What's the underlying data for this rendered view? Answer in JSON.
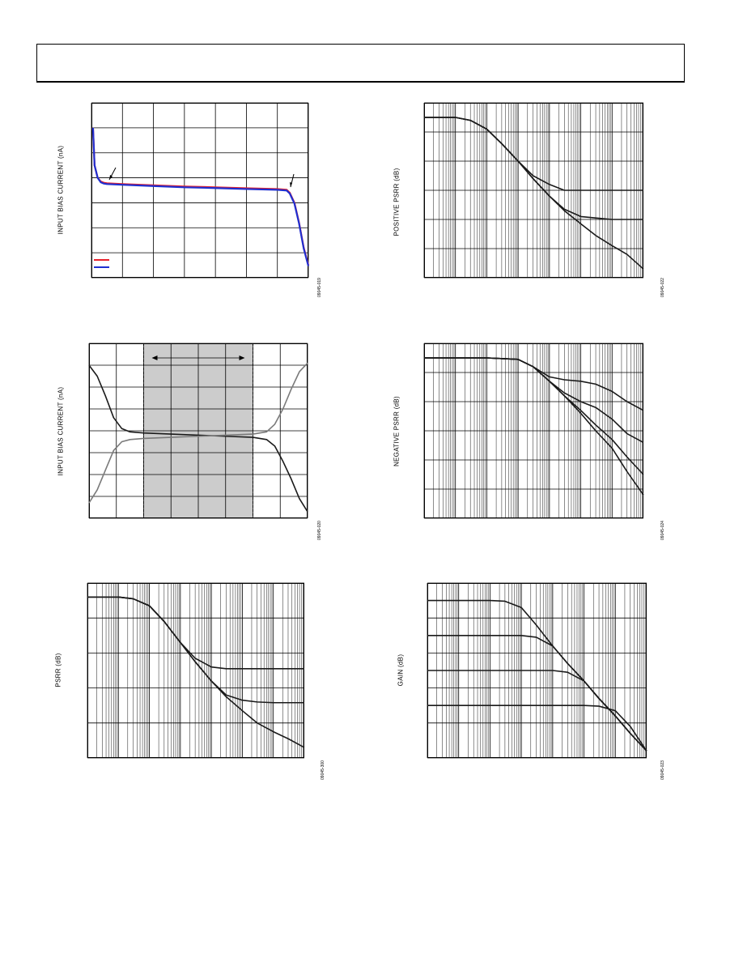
{
  "chart_data": [
    {
      "id": "c1",
      "type": "line",
      "ylabel": "INPUT BIAS CURRENT (nA)",
      "figure_id": "09045-019",
      "xlim": [
        0,
        7
      ],
      "ylim": [
        0,
        7
      ],
      "grid": true,
      "series_colors": [
        "#e8202a",
        "#1f2fd0"
      ],
      "series": [
        {
          "values_x": [
            0.05,
            0.1,
            0.2,
            0.3,
            0.4,
            0.5,
            1,
            2,
            3,
            4,
            5,
            6,
            6.3,
            6.4,
            6.55,
            6.7,
            6.85,
            7.0
          ],
          "values_y": [
            6.0,
            4.5,
            4.0,
            3.85,
            3.8,
            3.78,
            3.75,
            3.7,
            3.65,
            3.62,
            3.58,
            3.55,
            3.52,
            3.4,
            3.0,
            2.2,
            1.2,
            0.5
          ]
        },
        {
          "values_x": [
            0.05,
            0.1,
            0.2,
            0.3,
            0.4,
            0.5,
            1,
            2,
            3,
            4,
            5,
            6,
            6.3,
            6.4,
            6.55,
            6.7,
            6.85,
            7.0
          ],
          "values_y": [
            6.0,
            4.5,
            4.0,
            3.82,
            3.77,
            3.75,
            3.72,
            3.67,
            3.62,
            3.59,
            3.55,
            3.52,
            3.49,
            3.37,
            2.97,
            2.17,
            1.17,
            0.47
          ]
        }
      ]
    },
    {
      "id": "c2",
      "type": "line",
      "ylabel": "INPUT BIAS CURRENT (nA)",
      "figure_id": "09045-020",
      "xlim": [
        0,
        8
      ],
      "ylim": [
        0,
        8
      ],
      "grid": true,
      "shaded_range": [
        2,
        6
      ],
      "series_colors": [
        "#1a1a1a",
        "#7a7a7a"
      ],
      "series": [
        {
          "values_x": [
            0,
            0.3,
            0.6,
            0.9,
            1.2,
            1.5,
            2,
            3,
            4,
            5,
            6,
            6.5,
            6.8,
            7.1,
            7.4,
            7.7,
            8
          ],
          "values_y": [
            7.0,
            6.5,
            5.6,
            4.6,
            4.1,
            3.95,
            3.9,
            3.85,
            3.8,
            3.75,
            3.7,
            3.6,
            3.3,
            2.6,
            1.8,
            0.9,
            0.3
          ]
        },
        {
          "values_x": [
            0,
            0.3,
            0.6,
            0.9,
            1.2,
            1.5,
            2,
            3,
            4,
            5,
            6,
            6.5,
            6.8,
            7.1,
            7.4,
            7.7,
            8
          ],
          "values_y": [
            0.7,
            1.3,
            2.2,
            3.1,
            3.5,
            3.6,
            3.65,
            3.7,
            3.75,
            3.8,
            3.85,
            3.95,
            4.3,
            5.0,
            5.9,
            6.7,
            7.1
          ]
        }
      ]
    },
    {
      "id": "c3",
      "type": "line",
      "ylabel": "PSRR (dB)",
      "figure_id": "09045-300",
      "xlog": true,
      "xlim": [
        10,
        100000000
      ],
      "ylim": [
        0,
        5
      ],
      "grid": true,
      "series_colors": [
        "#1a1a1a",
        "#1a1a1a",
        "#1a1a1a"
      ],
      "series": [
        {
          "values_x": [
            10,
            100,
            300,
            1000,
            3000,
            10000,
            30000,
            100000,
            300000,
            1000000,
            100000000
          ],
          "values_y": [
            4.6,
            4.6,
            4.55,
            4.35,
            3.9,
            3.3,
            2.85,
            2.6,
            2.55,
            2.55,
            2.55
          ]
        },
        {
          "values_x": [
            10,
            100,
            300,
            1000,
            3000,
            10000,
            30000,
            100000,
            300000,
            1000000,
            3000000,
            10000000,
            100000000
          ],
          "values_y": [
            4.6,
            4.6,
            4.55,
            4.35,
            3.9,
            3.3,
            2.75,
            2.2,
            1.8,
            1.65,
            1.6,
            1.58,
            1.58
          ]
        },
        {
          "values_x": [
            10,
            100,
            300,
            1000,
            3000,
            10000,
            30000,
            100000,
            300000,
            1000000,
            3000000,
            10000000,
            30000000,
            100000000
          ],
          "values_y": [
            4.6,
            4.6,
            4.55,
            4.35,
            3.9,
            3.3,
            2.75,
            2.2,
            1.75,
            1.35,
            1.0,
            0.75,
            0.55,
            0.3
          ]
        }
      ]
    },
    {
      "id": "c4",
      "type": "line",
      "ylabel": "POSITIVE PSRR (dB)",
      "figure_id": "09045-022",
      "xlog": true,
      "xlim": [
        10,
        100000000
      ],
      "ylim": [
        0,
        6
      ],
      "grid": true,
      "series_colors": [
        "#1a1a1a",
        "#1a1a1a",
        "#1a1a1a"
      ],
      "series": [
        {
          "values_x": [
            10,
            100,
            300,
            1000,
            3000,
            10000,
            30000,
            100000,
            300000,
            1000000,
            100000000
          ],
          "values_y": [
            5.5,
            5.5,
            5.4,
            5.1,
            4.6,
            4.0,
            3.5,
            3.2,
            3.0,
            3.0,
            3.0
          ]
        },
        {
          "values_x": [
            10,
            100,
            300,
            1000,
            3000,
            10000,
            30000,
            100000,
            300000,
            1000000,
            3000000,
            10000000,
            100000000
          ],
          "values_y": [
            5.5,
            5.5,
            5.4,
            5.1,
            4.6,
            4.0,
            3.4,
            2.8,
            2.35,
            2.1,
            2.05,
            2.0,
            2.0
          ]
        },
        {
          "values_x": [
            10,
            100,
            300,
            1000,
            3000,
            10000,
            30000,
            100000,
            300000,
            1000000,
            3000000,
            10000000,
            30000000,
            100000000
          ],
          "values_y": [
            5.5,
            5.5,
            5.4,
            5.1,
            4.6,
            4.0,
            3.4,
            2.8,
            2.3,
            1.85,
            1.45,
            1.1,
            0.8,
            0.3
          ]
        }
      ]
    },
    {
      "id": "c5",
      "type": "line",
      "ylabel": "NEGATIVE PSRR (dB)",
      "figure_id": "09045-024",
      "xlog": true,
      "xlim": [
        10,
        100000000
      ],
      "ylim": [
        0,
        6
      ],
      "grid": true,
      "series_colors": [
        "#1a1a1a",
        "#1a1a1a",
        "#1a1a1a",
        "#1a1a1a"
      ],
      "series": [
        {
          "values_x": [
            10,
            100,
            1000,
            10000,
            30000,
            100000,
            300000,
            1000000,
            3000000,
            10000000,
            30000000,
            100000000
          ],
          "values_y": [
            5.5,
            5.5,
            5.5,
            5.45,
            5.2,
            4.85,
            4.75,
            4.7,
            4.6,
            4.35,
            4.0,
            3.7
          ]
        },
        {
          "values_x": [
            10,
            100,
            1000,
            10000,
            30000,
            100000,
            300000,
            1000000,
            3000000,
            10000000,
            30000000,
            100000000
          ],
          "values_y": [
            5.5,
            5.5,
            5.5,
            5.45,
            5.2,
            4.7,
            4.3,
            4.0,
            3.8,
            3.4,
            2.9,
            2.6
          ]
        },
        {
          "values_x": [
            10,
            100,
            1000,
            10000,
            30000,
            100000,
            300000,
            1000000,
            3000000,
            10000000,
            30000000,
            100000000
          ],
          "values_y": [
            5.5,
            5.5,
            5.5,
            5.45,
            5.2,
            4.7,
            4.2,
            3.7,
            3.2,
            2.7,
            2.1,
            1.5
          ]
        },
        {
          "values_x": [
            10,
            100,
            1000,
            10000,
            30000,
            100000,
            300000,
            1000000,
            3000000,
            10000000,
            30000000,
            100000000
          ],
          "values_y": [
            5.5,
            5.5,
            5.5,
            5.45,
            5.2,
            4.7,
            4.2,
            3.6,
            3.0,
            2.4,
            1.6,
            0.8
          ]
        }
      ]
    },
    {
      "id": "c6",
      "type": "line",
      "ylabel": "GAIN (dB)",
      "figure_id": "09045-023",
      "xlog": true,
      "xlim": [
        10,
        100000000
      ],
      "ylim": [
        0,
        5
      ],
      "grid": true,
      "series_colors": [
        "#1a1a1a",
        "#1a1a1a",
        "#1a1a1a",
        "#1a1a1a"
      ],
      "series": [
        {
          "values_x": [
            10,
            100,
            1000,
            3000,
            10000,
            30000,
            100000,
            300000,
            1000000,
            3000000,
            10000000,
            30000000,
            100000000
          ],
          "values_y": [
            4.5,
            4.5,
            4.5,
            4.48,
            4.3,
            3.8,
            3.2,
            2.7,
            2.2,
            1.7,
            1.2,
            0.7,
            0.2
          ]
        },
        {
          "values_x": [
            10,
            100,
            1000,
            10000,
            30000,
            100000,
            300000,
            1000000,
            3000000,
            10000000,
            30000000,
            100000000
          ],
          "values_y": [
            3.5,
            3.5,
            3.5,
            3.5,
            3.45,
            3.2,
            2.7,
            2.2,
            1.7,
            1.2,
            0.7,
            0.2
          ]
        },
        {
          "values_x": [
            10,
            100,
            1000,
            10000,
            100000,
            300000,
            1000000,
            3000000,
            10000000,
            30000000,
            100000000
          ],
          "values_y": [
            2.5,
            2.5,
            2.5,
            2.5,
            2.5,
            2.45,
            2.2,
            1.7,
            1.2,
            0.7,
            0.2
          ]
        },
        {
          "values_x": [
            10,
            100,
            1000,
            10000,
            100000,
            1000000,
            3000000,
            10000000,
            30000000,
            100000000
          ],
          "values_y": [
            1.5,
            1.5,
            1.5,
            1.5,
            1.5,
            1.5,
            1.48,
            1.35,
            0.9,
            0.2
          ]
        }
      ]
    }
  ]
}
